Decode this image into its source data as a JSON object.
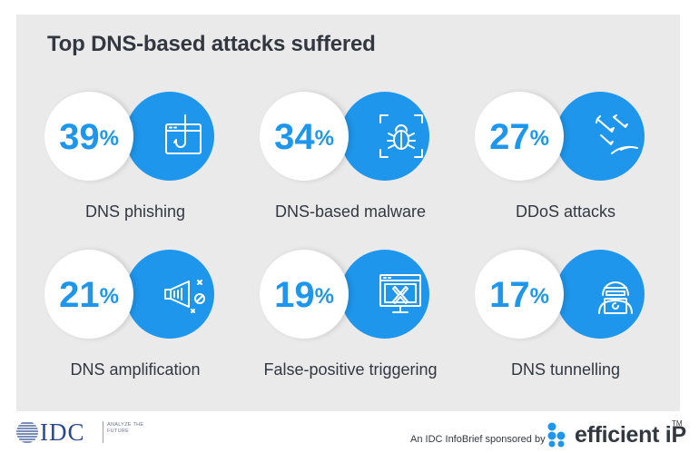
{
  "title": "Top DNS-based attacks suffered",
  "colors": {
    "accent": "#1e96ec",
    "background": "#eaeaea",
    "text": "#333840"
  },
  "stats": [
    {
      "value": "39",
      "unit": "%",
      "label": "DNS phishing",
      "icon": "phishing-hook-icon"
    },
    {
      "value": "34",
      "unit": "%",
      "label": "DNS-based malware",
      "icon": "bug-icon"
    },
    {
      "value": "27",
      "unit": "%",
      "label": "DDoS attacks",
      "icon": "missiles-icon"
    },
    {
      "value": "21",
      "unit": "%",
      "label": "DNS amplification",
      "icon": "megaphone-icon"
    },
    {
      "value": "19",
      "unit": "%",
      "label": "False-positive triggering",
      "icon": "error-window-icon"
    },
    {
      "value": "17",
      "unit": "%",
      "label": "DNS tunnelling",
      "icon": "hacker-icon"
    }
  ],
  "footer": {
    "idc_name": "IDC",
    "idc_tagline": "ANALYZE THE FUTURE",
    "sponsor_text": "An IDC InfoBrief sponsored by",
    "sponsor_name": "efficient iP",
    "trademark": "TM"
  }
}
